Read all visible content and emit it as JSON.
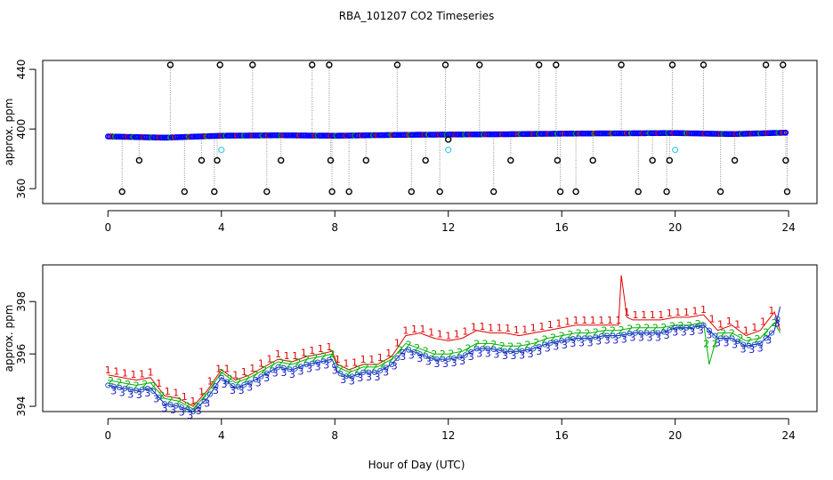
{
  "chart_data": [
    {
      "type": "scatter",
      "title": "RBA_101207  CO2 Timeseries",
      "xlabel": "",
      "ylabel": "approx. ppm",
      "xlim": [
        -2.3,
        25
      ],
      "ylim": [
        350,
        446
      ],
      "xticks": [
        "0",
        "4",
        "8",
        "12",
        "16",
        "20",
        "24"
      ],
      "yticks": [
        "360",
        "400",
        "440"
      ],
      "outlier_levels": [
        358,
        379,
        393,
        443
      ],
      "series": [
        {
          "name": "baseline",
          "color": "#0000ff",
          "x": [
            0,
            2,
            4,
            6,
            8,
            10,
            12,
            14,
            16,
            18,
            20,
            22,
            23.8
          ],
          "y": [
            395.0,
            394.2,
            395.5,
            395.8,
            395.5,
            396.0,
            396.3,
            396.5,
            396.9,
            397.1,
            397.3,
            396.6,
            397.5
          ]
        },
        {
          "name": "outliers",
          "color": "#000000",
          "x": [
            0.5,
            1.1,
            2.2,
            2.7,
            3.3,
            3.75,
            3.85,
            3.95,
            5.1,
            5.6,
            6.1,
            7.2,
            7.8,
            7.85,
            7.9,
            8.5,
            9.1,
            10.2,
            10.7,
            11.2,
            11.7,
            11.9,
            12.0,
            13.1,
            13.6,
            14.2,
            15.2,
            15.8,
            15.85,
            15.95,
            16.5,
            17.1,
            18.1,
            18.7,
            19.2,
            19.7,
            19.8,
            19.9,
            21.0,
            21.6,
            22.1,
            23.2,
            23.8,
            23.9,
            23.95
          ],
          "y": [
            358,
            379,
            443,
            358,
            379,
            358,
            379,
            443,
            443,
            358,
            379,
            443,
            443,
            379,
            358,
            358,
            379,
            443,
            358,
            379,
            358,
            443,
            393,
            443,
            358,
            379,
            443,
            443,
            379,
            358,
            358,
            379,
            443,
            358,
            379,
            358,
            379,
            443,
            443,
            358,
            379,
            443,
            443,
            379,
            358
          ]
        }
      ]
    },
    {
      "type": "line",
      "title": "",
      "xlabel": "Hour of Day (UTC)",
      "ylabel": "approx. ppm",
      "xlim": [
        -2.3,
        25
      ],
      "ylim": [
        393.8,
        399.4
      ],
      "xticks": [
        "0",
        "4",
        "8",
        "12",
        "16",
        "20",
        "24"
      ],
      "yticks": [
        "394",
        "396",
        "398"
      ],
      "marker_labels": [
        "1",
        "2",
        "3"
      ],
      "series": [
        {
          "name": "1",
          "color": "#e00000",
          "x": [
            0,
            0.5,
            1,
            1.5,
            2,
            2.5,
            3,
            3.5,
            4,
            4.5,
            5,
            5.5,
            6,
            6.5,
            7,
            7.5,
            7.9,
            8.1,
            8.5,
            9,
            9.5,
            10,
            10.5,
            11,
            11.5,
            12,
            12.5,
            13,
            13.5,
            14,
            14.5,
            15,
            15.5,
            16,
            16.5,
            17,
            17.5,
            18,
            18.1,
            18.3,
            18.5,
            19,
            19.5,
            20,
            20.5,
            21,
            21.5,
            22,
            22.5,
            23,
            23.5,
            23.7
          ],
          "y": [
            395.2,
            395.1,
            395.0,
            395.1,
            394.4,
            394.3,
            394.0,
            394.6,
            395.4,
            395.0,
            395.2,
            395.5,
            395.8,
            395.7,
            395.9,
            396.0,
            396.1,
            395.6,
            395.4,
            395.6,
            395.6,
            395.9,
            396.7,
            396.8,
            396.6,
            396.5,
            396.6,
            396.9,
            396.8,
            396.8,
            396.7,
            396.8,
            396.9,
            397.0,
            397.1,
            397.1,
            397.1,
            397.1,
            399.0,
            397.4,
            397.3,
            397.3,
            397.3,
            397.4,
            397.4,
            397.5,
            396.9,
            397.1,
            396.7,
            396.9,
            397.6,
            396.9
          ]
        },
        {
          "name": "2",
          "color": "#00b000",
          "x": [
            0,
            0.5,
            1,
            1.5,
            2,
            2.5,
            3,
            3.5,
            4,
            4.5,
            5,
            5.5,
            6,
            6.5,
            7,
            7.5,
            7.9,
            8.1,
            8.5,
            9,
            9.5,
            10,
            10.5,
            11,
            11.5,
            12,
            12.5,
            13,
            13.5,
            14,
            14.5,
            15,
            15.5,
            16,
            16.5,
            17,
            17.5,
            18,
            18.5,
            19,
            19.5,
            20,
            20.5,
            21,
            21.2,
            21.5,
            22,
            22.5,
            23,
            23.5,
            23.7
          ],
          "y": [
            395.0,
            394.9,
            394.8,
            394.9,
            394.3,
            394.2,
            393.9,
            394.5,
            395.3,
            394.9,
            395.1,
            395.4,
            395.7,
            395.6,
            395.8,
            395.9,
            396.0,
            395.5,
            395.3,
            395.5,
            395.5,
            395.8,
            396.4,
            396.2,
            396.0,
            396.0,
            396.1,
            396.4,
            396.4,
            396.3,
            396.3,
            396.4,
            396.6,
            396.7,
            396.8,
            396.8,
            396.9,
            396.9,
            397.0,
            397.0,
            397.0,
            397.1,
            397.1,
            397.2,
            395.6,
            396.8,
            396.8,
            396.5,
            396.6,
            397.2,
            396.8
          ]
        },
        {
          "name": "3",
          "color": "#1010c0",
          "x": [
            0,
            0.5,
            1,
            1.5,
            2,
            2.5,
            3,
            3.5,
            4,
            4.5,
            5,
            5.5,
            6,
            6.5,
            7,
            7.5,
            7.9,
            8.1,
            8.5,
            9,
            9.5,
            10,
            10.5,
            11,
            11.5,
            12,
            12.5,
            13,
            13.5,
            14,
            14.5,
            15,
            15.5,
            16,
            16.5,
            17,
            17.5,
            18,
            18.5,
            19,
            19.5,
            20,
            20.5,
            21,
            21.5,
            22,
            22.5,
            23,
            23.5,
            23.7
          ],
          "y": [
            394.8,
            394.7,
            394.6,
            394.7,
            394.1,
            394.0,
            393.8,
            394.3,
            395.1,
            394.7,
            394.9,
            395.2,
            395.5,
            395.4,
            395.6,
            395.7,
            395.8,
            395.3,
            395.1,
            395.3,
            395.3,
            395.6,
            396.2,
            396.0,
            395.8,
            395.8,
            395.9,
            396.2,
            396.2,
            396.1,
            396.1,
            396.2,
            396.4,
            396.5,
            396.6,
            396.6,
            396.7,
            396.7,
            396.8,
            396.8,
            396.8,
            397.0,
            397.0,
            397.1,
            396.6,
            396.6,
            396.3,
            396.4,
            396.9,
            397.8
          ]
        }
      ]
    }
  ]
}
